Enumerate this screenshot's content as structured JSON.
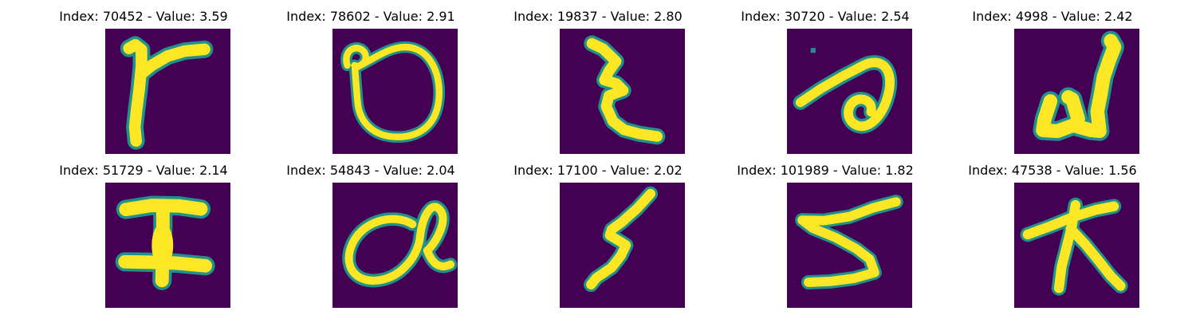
{
  "figure": {
    "background": "#ffffff",
    "image_background": "#440154",
    "stroke_color": "#fde725",
    "edge_color": "#21918c",
    "cmap": "viridis",
    "panels": [
      {
        "title": "Index: 70452 - Value: 3.59",
        "index": 70452,
        "value": 3.59,
        "glyph": "r-like-character"
      },
      {
        "title": "Index: 78602 - Value: 2.91",
        "index": 78602,
        "value": 2.91,
        "glyph": "loop-character"
      },
      {
        "title": "Index: 19837 - Value: 2.80",
        "index": 19837,
        "value": 2.8,
        "glyph": "zigzag-character"
      },
      {
        "title": "Index: 30720 - Value: 2.54",
        "index": 30720,
        "value": 2.54,
        "glyph": "curl-character"
      },
      {
        "title": "Index: 4998 - Value: 2.42",
        "index": 4998,
        "value": 2.42,
        "glyph": "u-hook-character"
      },
      {
        "title": "Index: 51729 - Value: 2.14",
        "index": 51729,
        "value": 2.14,
        "glyph": "i-beam-character"
      },
      {
        "title": "Index: 54843 - Value: 2.04",
        "index": 54843,
        "value": 2.04,
        "glyph": "q-like-character"
      },
      {
        "title": "Index: 17100 - Value: 2.02",
        "index": 17100,
        "value": 2.02,
        "glyph": "lightning-character"
      },
      {
        "title": "Index: 101989 - Value: 1.82",
        "index": 101989,
        "value": 1.82,
        "glyph": "five-like-character"
      },
      {
        "title": "Index: 47538 - Value: 1.56",
        "index": 47538,
        "value": 1.56,
        "glyph": "cross-branch-character"
      }
    ]
  },
  "chart_data": {
    "type": "image-grid",
    "rows": 2,
    "cols": 5,
    "x": [
      70452,
      78602,
      19837,
      30720,
      4998,
      51729,
      54843,
      17100,
      101989,
      47538
    ],
    "values": [
      3.59,
      2.91,
      2.8,
      2.54,
      2.42,
      2.14,
      2.04,
      2.02,
      1.82,
      1.56
    ],
    "titles": [
      "Index: 70452 - Value: 3.59",
      "Index: 78602 - Value: 2.91",
      "Index: 19837 - Value: 2.80",
      "Index: 30720 - Value: 2.54",
      "Index: 4998 - Value: 2.42",
      "Index: 51729 - Value: 2.14",
      "Index: 54843 - Value: 2.04",
      "Index: 17100 - Value: 2.02",
      "Index: 101989 - Value: 1.82",
      "Index: 47538 - Value: 1.56"
    ],
    "grid": false
  }
}
